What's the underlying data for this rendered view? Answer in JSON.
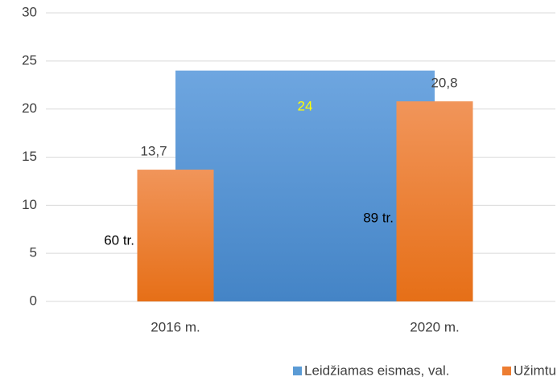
{
  "chart_data": {
    "type": "bar",
    "categories": [
      "2016 m.",
      "2020 m."
    ],
    "series": [
      {
        "name": "Leidžiamas eismas, val.",
        "color": "#5b9bd5",
        "values": [
          24,
          24
        ],
        "kind": "area"
      },
      {
        "name": "Užimtumas, val.",
        "color": "#ed7d31",
        "values": [
          13.7,
          20.8
        ],
        "value_labels": [
          "13,7",
          "20,8"
        ]
      }
    ],
    "annotations": [
      "60 tr.",
      "89 tr."
    ],
    "ylim": [
      0,
      30
    ],
    "yticks": [
      0,
      5,
      10,
      15,
      20,
      25,
      30
    ],
    "grid": true,
    "legend": "bottom"
  }
}
